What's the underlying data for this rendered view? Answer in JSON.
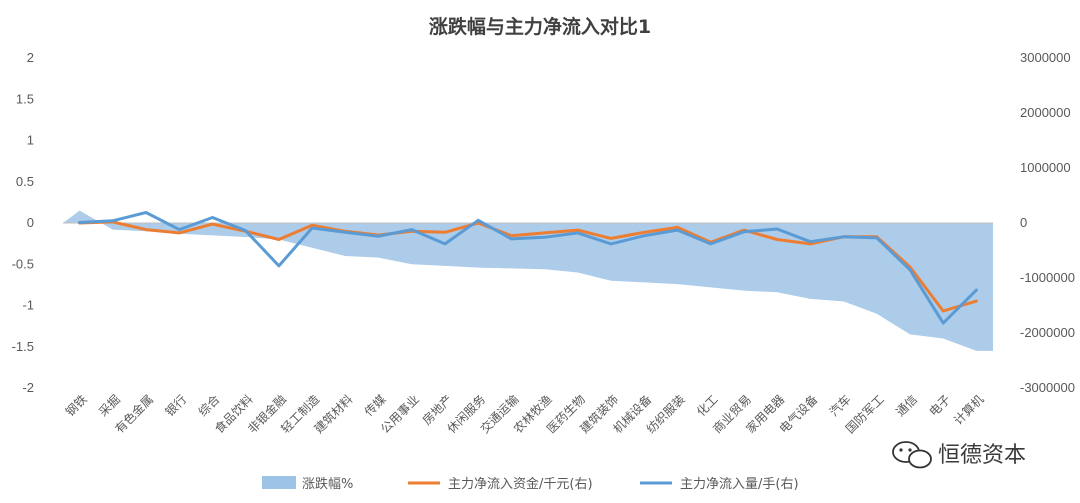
{
  "chart_data": {
    "type": "area+line",
    "title": "涨跌幅与主力净流入对比1",
    "categories": [
      "钢铁",
      "采掘",
      "有色金属",
      "银行",
      "综合",
      "食品饮料",
      "非银金融",
      "轻工制造",
      "建筑材料",
      "传媒",
      "公用事业",
      "房地产",
      "休闲服务",
      "交通运输",
      "农林牧渔",
      "医药生物",
      "建筑装饰",
      "机械设备",
      "纺织服装",
      "化工",
      "商业贸易",
      "家用电器",
      "电气设备",
      "汽车",
      "国防军工",
      "通信",
      "电子",
      "计算机"
    ],
    "y_left": {
      "min": -2,
      "max": 2,
      "ticks": [
        2,
        1.5,
        1,
        0.5,
        0,
        -0.5,
        -1,
        -1.5,
        -2
      ],
      "tick_labels": [
        "2",
        "1.5",
        "1",
        "0.5",
        "0",
        "-0.5",
        "-1",
        "-1.5",
        "-2"
      ]
    },
    "y_right": {
      "min": -3000000,
      "max": 3000000,
      "ticks": [
        3000000,
        2000000,
        1000000,
        0,
        -1000000,
        -2000000,
        -3000000
      ],
      "tick_labels": [
        "3000000",
        "2000000",
        "1000000",
        "0",
        "-1000000",
        "-2000000",
        "-3000000"
      ]
    },
    "series": [
      {
        "name": "涨跌幅%",
        "type": "area",
        "axis": "left",
        "color": "#9dc3e6",
        "values": [
          0.15,
          -0.08,
          -0.1,
          -0.13,
          -0.15,
          -0.17,
          -0.2,
          -0.3,
          -0.4,
          -0.42,
          -0.5,
          -0.52,
          -0.54,
          -0.55,
          -0.56,
          -0.6,
          -0.7,
          -0.72,
          -0.74,
          -0.78,
          -0.82,
          -0.84,
          -0.92,
          -0.95,
          -1.1,
          -1.35,
          -1.4,
          -1.55
        ]
      },
      {
        "name": "主力净流入资金/千元(右)",
        "type": "line",
        "axis": "right",
        "color": "#ed7d31",
        "values": [
          0,
          20000,
          -120000,
          -180000,
          -20000,
          -150000,
          -300000,
          -40000,
          -150000,
          -220000,
          -150000,
          -170000,
          0,
          -230000,
          -180000,
          -130000,
          -280000,
          -170000,
          -80000,
          -350000,
          -130000,
          -300000,
          -380000,
          -250000,
          -250000,
          -800000,
          -1600000,
          -1420000
        ]
      },
      {
        "name": "主力净流入量/手(右)",
        "type": "line",
        "axis": "right",
        "color": "#5b9bd5",
        "values": [
          10000,
          40000,
          190000,
          -120000,
          100000,
          -140000,
          -780000,
          -90000,
          -170000,
          -240000,
          -120000,
          -380000,
          50000,
          -290000,
          -260000,
          -180000,
          -380000,
          -230000,
          -130000,
          -380000,
          -160000,
          -110000,
          -340000,
          -250000,
          -270000,
          -850000,
          -1820000,
          -1220000
        ]
      }
    ],
    "legend_position": "bottom",
    "grid": false
  },
  "watermark": {
    "icon": "wechat-icon",
    "text": "恒德资本"
  }
}
